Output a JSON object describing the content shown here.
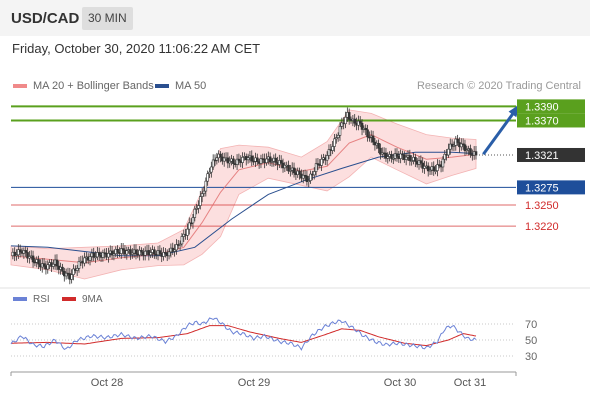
{
  "header": {
    "symbol": "USD/CAD",
    "timeframe": "30 MIN"
  },
  "subheader": {
    "datetime": "Friday, October 30, 2020 11:06:22 AM CET"
  },
  "legend": {
    "items": [
      {
        "label": "MA 20 + Bollinger Bands",
        "color": "#f08a8a"
      },
      {
        "label": "MA 50",
        "color": "#2a4f8f"
      }
    ],
    "credit": "Research © 2020 Trading Central"
  },
  "chart_data": {
    "type": "candlestick",
    "price_ylim": [
      1.3135,
      1.3409
    ],
    "dates": [
      "Oct 28",
      "Oct 29",
      "Oct 30",
      "Oct 31"
    ],
    "levels": [
      {
        "label": "1.3390",
        "value": 1.339,
        "style": "resistance",
        "color": "#5aa01e"
      },
      {
        "label": "1.3370",
        "value": 1.337,
        "style": "resistance",
        "color": "#5aa01e"
      },
      {
        "label": "1.3321",
        "value": 1.3321,
        "style": "current",
        "color": "#333333"
      },
      {
        "label": "1.3275",
        "value": 1.3275,
        "style": "pivot",
        "color": "#1e4e9a"
      },
      {
        "label": "1.3250",
        "value": 1.325,
        "style": "support",
        "color": "#d12b2b"
      },
      {
        "label": "1.3220",
        "value": 1.322,
        "style": "support",
        "color": "#d12b2b"
      }
    ],
    "price_path": [
      [
        0,
        1.3178
      ],
      [
        6,
        1.3185
      ],
      [
        12,
        1.3172
      ],
      [
        18,
        1.3162
      ],
      [
        24,
        1.3168
      ],
      [
        28,
        1.3155
      ],
      [
        32,
        1.3148
      ],
      [
        38,
        1.317
      ],
      [
        44,
        1.3178
      ],
      [
        52,
        1.318
      ],
      [
        60,
        1.3185
      ],
      [
        68,
        1.3182
      ],
      [
        76,
        1.3183
      ],
      [
        84,
        1.318
      ],
      [
        90,
        1.319
      ],
      [
        96,
        1.3215
      ],
      [
        100,
        1.324
      ],
      [
        104,
        1.3265
      ],
      [
        108,
        1.33
      ],
      [
        112,
        1.332
      ],
      [
        116,
        1.3315
      ],
      [
        122,
        1.331
      ],
      [
        128,
        1.3318
      ],
      [
        134,
        1.3312
      ],
      [
        140,
        1.3315
      ],
      [
        146,
        1.331
      ],
      [
        152,
        1.33
      ],
      [
        158,
        1.3292
      ],
      [
        162,
        1.3285
      ],
      [
        166,
        1.3305
      ],
      [
        172,
        1.332
      ],
      [
        176,
        1.334
      ],
      [
        180,
        1.3365
      ],
      [
        183,
        1.3378
      ],
      [
        186,
        1.3368
      ],
      [
        190,
        1.3365
      ],
      [
        194,
        1.335
      ],
      [
        198,
        1.3338
      ],
      [
        202,
        1.3322
      ],
      [
        206,
        1.3318
      ],
      [
        212,
        1.332
      ],
      [
        218,
        1.3315
      ],
      [
        222,
        1.331
      ],
      [
        226,
        1.3302
      ],
      [
        230,
        1.33
      ],
      [
        234,
        1.3308
      ],
      [
        238,
        1.333
      ],
      [
        242,
        1.334
      ],
      [
        246,
        1.3333
      ],
      [
        250,
        1.3324
      ],
      [
        253,
        1.3321
      ]
    ],
    "ma20": [
      [
        0,
        1.3178
      ],
      [
        20,
        1.3173
      ],
      [
        40,
        1.3168
      ],
      [
        60,
        1.3175
      ],
      [
        80,
        1.318
      ],
      [
        94,
        1.319
      ],
      [
        104,
        1.3225
      ],
      [
        114,
        1.3268
      ],
      [
        124,
        1.33
      ],
      [
        140,
        1.331
      ],
      [
        158,
        1.3298
      ],
      [
        172,
        1.3305
      ],
      [
        184,
        1.3338
      ],
      [
        196,
        1.335
      ],
      [
        210,
        1.3332
      ],
      [
        226,
        1.3315
      ],
      [
        240,
        1.3318
      ],
      [
        253,
        1.3322
      ]
    ],
    "ma50": [
      [
        0,
        1.3192
      ],
      [
        20,
        1.319
      ],
      [
        40,
        1.3184
      ],
      [
        60,
        1.3178
      ],
      [
        80,
        1.3178
      ],
      [
        100,
        1.319
      ],
      [
        120,
        1.323
      ],
      [
        140,
        1.3265
      ],
      [
        160,
        1.3285
      ],
      [
        180,
        1.3302
      ],
      [
        200,
        1.3318
      ],
      [
        220,
        1.3325
      ],
      [
        240,
        1.3325
      ],
      [
        253,
        1.3323
      ]
    ],
    "bb_upper": [
      [
        0,
        1.3192
      ],
      [
        20,
        1.3188
      ],
      [
        40,
        1.319
      ],
      [
        60,
        1.3192
      ],
      [
        80,
        1.3196
      ],
      [
        94,
        1.3215
      ],
      [
        104,
        1.327
      ],
      [
        114,
        1.333
      ],
      [
        124,
        1.3335
      ],
      [
        140,
        1.3332
      ],
      [
        158,
        1.3318
      ],
      [
        172,
        1.334
      ],
      [
        184,
        1.3385
      ],
      [
        196,
        1.338
      ],
      [
        210,
        1.3365
      ],
      [
        226,
        1.335
      ],
      [
        240,
        1.3345
      ],
      [
        253,
        1.3343
      ]
    ],
    "bb_lower": [
      [
        0,
        1.3165
      ],
      [
        20,
        1.3158
      ],
      [
        40,
        1.3145
      ],
      [
        60,
        1.3158
      ],
      [
        80,
        1.3164
      ],
      [
        94,
        1.3165
      ],
      [
        104,
        1.318
      ],
      [
        114,
        1.3205
      ],
      [
        124,
        1.3265
      ],
      [
        140,
        1.3288
      ],
      [
        158,
        1.3278
      ],
      [
        172,
        1.327
      ],
      [
        184,
        1.329
      ],
      [
        196,
        1.3318
      ],
      [
        210,
        1.33
      ],
      [
        226,
        1.328
      ],
      [
        240,
        1.3292
      ],
      [
        253,
        1.3302
      ]
    ],
    "arrow": {
      "from": [
        257,
        1.3322
      ],
      "to": [
        276,
        1.339
      ],
      "color": "#2a5ea8"
    },
    "rsi": {
      "levels": [
        {
          "label": "70",
          "value": 70
        },
        {
          "label": "50",
          "value": 50
        },
        {
          "label": "30",
          "value": 30
        }
      ],
      "ylim": [
        15,
        85
      ],
      "rsi_series": [
        [
          0,
          45
        ],
        [
          6,
          55
        ],
        [
          12,
          44
        ],
        [
          18,
          42
        ],
        [
          24,
          50
        ],
        [
          30,
          38
        ],
        [
          36,
          50
        ],
        [
          44,
          55
        ],
        [
          52,
          53
        ],
        [
          60,
          57
        ],
        [
          68,
          52
        ],
        [
          76,
          55
        ],
        [
          84,
          48
        ],
        [
          90,
          55
        ],
        [
          96,
          68
        ],
        [
          100,
          72
        ],
        [
          104,
          70
        ],
        [
          110,
          78
        ],
        [
          114,
          72
        ],
        [
          120,
          60
        ],
        [
          126,
          58
        ],
        [
          132,
          52
        ],
        [
          138,
          55
        ],
        [
          146,
          48
        ],
        [
          152,
          46
        ],
        [
          158,
          40
        ],
        [
          164,
          56
        ],
        [
          170,
          66
        ],
        [
          176,
          72
        ],
        [
          180,
          74
        ],
        [
          184,
          68
        ],
        [
          188,
          62
        ],
        [
          192,
          55
        ],
        [
          198,
          48
        ],
        [
          204,
          44
        ],
        [
          210,
          46
        ],
        [
          216,
          44
        ],
        [
          222,
          42
        ],
        [
          226,
          40
        ],
        [
          232,
          48
        ],
        [
          236,
          64
        ],
        [
          240,
          68
        ],
        [
          244,
          60
        ],
        [
          248,
          52
        ],
        [
          253,
          50
        ]
      ],
      "ma9_series": [
        [
          0,
          46
        ],
        [
          20,
          47
        ],
        [
          40,
          45
        ],
        [
          60,
          52
        ],
        [
          80,
          53
        ],
        [
          96,
          58
        ],
        [
          108,
          68
        ],
        [
          118,
          68
        ],
        [
          130,
          60
        ],
        [
          146,
          52
        ],
        [
          158,
          47
        ],
        [
          170,
          56
        ],
        [
          180,
          64
        ],
        [
          190,
          62
        ],
        [
          200,
          54
        ],
        [
          214,
          46
        ],
        [
          226,
          43
        ],
        [
          238,
          50
        ],
        [
          246,
          58
        ],
        [
          253,
          55
        ]
      ]
    }
  },
  "rsi_legend": {
    "items": [
      {
        "label": "RSI",
        "color": "#6b82d6"
      },
      {
        "label": "9MA",
        "color": "#d12b2b"
      }
    ]
  }
}
